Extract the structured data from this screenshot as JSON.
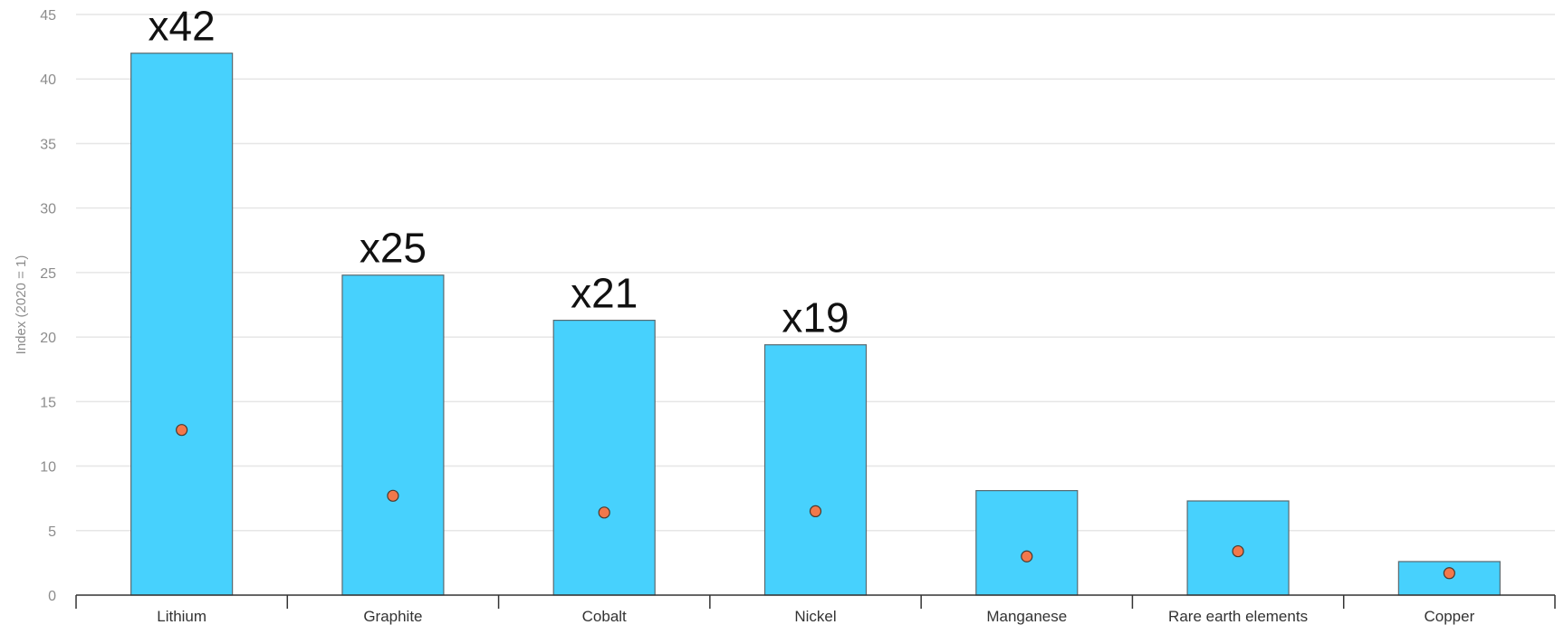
{
  "chart_data": {
    "type": "bar",
    "title": "",
    "ylabel": "Index (2020 = 1)",
    "xlabel": "",
    "ylim": [
      0,
      45
    ],
    "yticks": [
      0,
      5,
      10,
      15,
      20,
      25,
      30,
      35,
      40,
      45
    ],
    "grid": true,
    "categories": [
      "Lithium",
      "Graphite",
      "Cobalt",
      "Nickel",
      "Manganese",
      "Rare earth elements",
      "Copper"
    ],
    "series": [
      {
        "type": "bar",
        "values": [
          42,
          24.8,
          21.3,
          19.4,
          8.1,
          7.3,
          2.6
        ],
        "color": "#47d1fd"
      },
      {
        "type": "scatter",
        "values": [
          12.8,
          7.7,
          6.4,
          6.5,
          3.0,
          3.4,
          1.7
        ],
        "color": "#f2784b"
      }
    ],
    "annotations": [
      {
        "category": "Lithium",
        "text": "x42"
      },
      {
        "category": "Graphite",
        "text": "x25"
      },
      {
        "category": "Cobalt",
        "text": "x21"
      },
      {
        "category": "Nickel",
        "text": "x19"
      }
    ]
  }
}
